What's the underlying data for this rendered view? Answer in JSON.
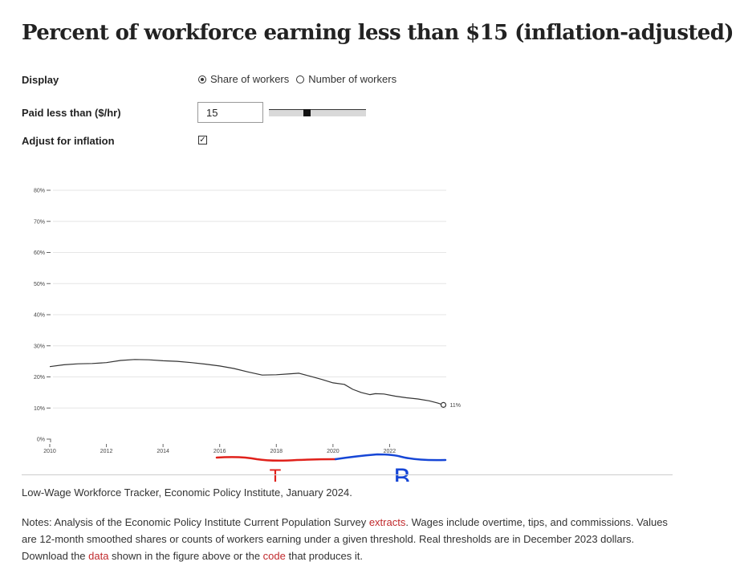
{
  "title": "Percent of workforce earning less than $15 (inflation-adjusted)",
  "controls": {
    "display_label": "Display",
    "display_options": [
      "Share of workers",
      "Number of workers"
    ],
    "display_selected": "Share of workers",
    "paid_less_label": "Paid less than ($/hr)",
    "threshold_value": "15",
    "threshold_slider_fraction": 0.38,
    "adjust_label": "Adjust for inflation",
    "adjust_checked": true,
    "checkmark": "✓"
  },
  "chart_data": {
    "type": "line",
    "title": "Percent of workforce earning less than $15 (inflation-adjusted)",
    "xlabel": "",
    "ylabel": "",
    "x_ticks": [
      "2010",
      "2012",
      "2014",
      "2016",
      "2018",
      "2020",
      "2022"
    ],
    "y_ticks": [
      "0%",
      "10%",
      "20%",
      "30%",
      "40%",
      "50%",
      "60%",
      "70%",
      "80%"
    ],
    "xlim": [
      2010,
      2024
    ],
    "ylim": [
      0,
      80
    ],
    "grid": true,
    "series": [
      {
        "values": [
          [
            2010.0,
            23.3
          ],
          [
            2010.5,
            23.9
          ],
          [
            2011.0,
            24.2
          ],
          [
            2011.5,
            24.3
          ],
          [
            2012.0,
            24.6
          ],
          [
            2012.5,
            25.3
          ],
          [
            2013.0,
            25.6
          ],
          [
            2013.5,
            25.5
          ],
          [
            2014.0,
            25.2
          ],
          [
            2014.5,
            25.0
          ],
          [
            2015.0,
            24.6
          ],
          [
            2015.5,
            24.1
          ],
          [
            2016.0,
            23.5
          ],
          [
            2016.5,
            22.7
          ],
          [
            2017.0,
            21.6
          ],
          [
            2017.5,
            20.6
          ],
          [
            2018.0,
            20.7
          ],
          [
            2018.5,
            21.0
          ],
          [
            2018.8,
            21.2
          ],
          [
            2019.2,
            20.2
          ],
          [
            2019.6,
            19.2
          ],
          [
            2020.0,
            18.1
          ],
          [
            2020.4,
            17.6
          ],
          [
            2020.7,
            16.0
          ],
          [
            2021.0,
            15.0
          ],
          [
            2021.3,
            14.3
          ],
          [
            2021.5,
            14.6
          ],
          [
            2021.8,
            14.5
          ],
          [
            2022.2,
            13.8
          ],
          [
            2022.6,
            13.3
          ],
          [
            2023.0,
            12.9
          ],
          [
            2023.4,
            12.3
          ],
          [
            2023.7,
            11.6
          ],
          [
            2023.9,
            11.0
          ]
        ]
      }
    ],
    "end_label": "11%",
    "line_color": "#333333"
  },
  "annotations": {
    "red_label": "T",
    "blue_label": "B",
    "red_color": "#e0211b",
    "blue_color": "#1646d6"
  },
  "source": "Low-Wage Workforce Tracker, Economic Policy Institute, January 2024.",
  "notes": {
    "part1": "Notes: Analysis of the Economic Policy Institute Current Population Survey ",
    "link1": "extracts",
    "part2": ". Wages include overtime, tips, and commissions. Values are 12-month smoothed shares or counts of workers earning under a given threshold. Real thresholds are in December 2023 dollars. Download the ",
    "link2": "data",
    "part3": " shown in the figure above or the ",
    "link3": "code",
    "part4": " that produces it."
  }
}
